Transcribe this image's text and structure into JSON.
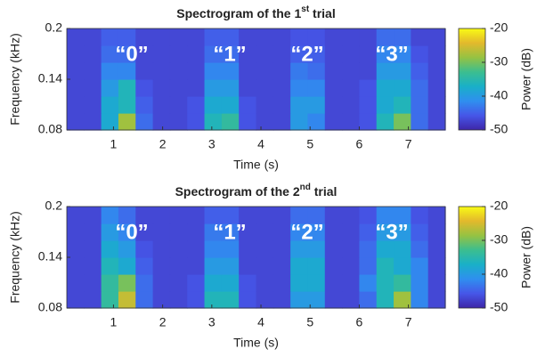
{
  "chart_data": [
    {
      "type": "heatmap",
      "title": {
        "text": "Spectrogram of the 1",
        "superscript": "st",
        "suffix": " trial"
      },
      "xlabel": "Time (s)",
      "ylabel": "Frequency (kHz)",
      "xlim": [
        0.05,
        7.75
      ],
      "ylim": [
        0.08,
        0.2
      ],
      "xticks": [
        1,
        2,
        3,
        4,
        5,
        6,
        7
      ],
      "yticks": [
        0.08,
        0.14,
        0.2
      ],
      "xbins": [
        0.05,
        0.4,
        0.75,
        1.1,
        1.45,
        1.8,
        2.15,
        2.5,
        2.85,
        3.2,
        3.55,
        3.9,
        4.25,
        4.6,
        4.95,
        5.3,
        5.65,
        6,
        6.35,
        6.7,
        7.05,
        7.4,
        7.75
      ],
      "ybins": [
        0.08,
        0.1,
        0.12,
        0.14,
        0.16,
        0.18,
        0.2
      ],
      "values": [
        [
          -47,
          -47,
          -38,
          -28,
          -44,
          -47,
          -47,
          -46,
          -36,
          -34,
          -46,
          -47,
          -47,
          -40,
          -42,
          -47,
          -47,
          -46,
          -36,
          -30,
          -44,
          -47
        ],
        [
          -47,
          -47,
          -38,
          -36,
          -45,
          -47,
          -47,
          -46,
          -38,
          -38,
          -46,
          -47,
          -47,
          -40,
          -40,
          -47,
          -47,
          -46,
          -38,
          -36,
          -44,
          -47
        ],
        [
          -47,
          -47,
          -40,
          -36,
          -46,
          -47,
          -47,
          -47,
          -40,
          -40,
          -47,
          -47,
          -47,
          -42,
          -42,
          -47,
          -47,
          -46,
          -38,
          -38,
          -44,
          -47
        ],
        [
          -47,
          -47,
          -42,
          -42,
          -47,
          -47,
          -47,
          -47,
          -42,
          -42,
          -47,
          -47,
          -47,
          -43,
          -44,
          -47,
          -47,
          -47,
          -40,
          -40,
          -45,
          -47
        ],
        [
          -47,
          -47,
          -44,
          -44,
          -47,
          -47,
          -47,
          -47,
          -44,
          -44,
          -47,
          -47,
          -47,
          -45,
          -45,
          -47,
          -47,
          -47,
          -42,
          -42,
          -46,
          -47
        ],
        [
          -47,
          -47,
          -45,
          -45,
          -47,
          -47,
          -47,
          -47,
          -45,
          -45,
          -47,
          -47,
          -47,
          -46,
          -46,
          -47,
          -47,
          -47,
          -44,
          -44,
          -47,
          -47
        ]
      ],
      "colormap": [
        "#3e26a8",
        "#4656e8",
        "#2f8fef",
        "#19b0c8",
        "#3cbe8f",
        "#96c242",
        "#e3b92c",
        "#f9fb15"
      ],
      "colorbar": {
        "label": "Power (dB)",
        "clim": [
          -50,
          -20
        ],
        "ticks": [
          -20,
          -30,
          -40,
          -50
        ]
      },
      "annotations": [
        "“0”",
        "“1”",
        "“2”",
        "“3”"
      ]
    },
    {
      "type": "heatmap",
      "title": {
        "text": "Spectrogram of the 2",
        "superscript": "nd",
        "suffix": " trial"
      },
      "xlabel": "Time (s)",
      "ylabel": "Frequency (kHz)",
      "xlim": [
        0.05,
        7.75
      ],
      "ylim": [
        0.08,
        0.2
      ],
      "xticks": [
        1,
        2,
        3,
        4,
        5,
        6,
        7
      ],
      "yticks": [
        0.08,
        0.14,
        0.2
      ],
      "xbins": [
        0.05,
        0.4,
        0.75,
        1.1,
        1.45,
        1.8,
        2.15,
        2.5,
        2.85,
        3.2,
        3.55,
        3.9,
        4.25,
        4.6,
        4.95,
        5.3,
        5.65,
        6,
        6.35,
        6.7,
        7.05,
        7.4,
        7.75
      ],
      "ybins": [
        0.08,
        0.1,
        0.12,
        0.14,
        0.16,
        0.18,
        0.2
      ],
      "values": [
        [
          -47,
          -47,
          -34,
          -26,
          -44,
          -47,
          -47,
          -46,
          -36,
          -36,
          -46,
          -47,
          -47,
          -40,
          -40,
          -47,
          -47,
          -44,
          -36,
          -28,
          -42,
          -47
        ],
        [
          -47,
          -47,
          -34,
          -30,
          -44,
          -47,
          -47,
          -46,
          -38,
          -38,
          -46,
          -47,
          -47,
          -38,
          -38,
          -47,
          -47,
          -42,
          -36,
          -34,
          -42,
          -47
        ],
        [
          -47,
          -47,
          -36,
          -38,
          -45,
          -47,
          -47,
          -47,
          -40,
          -40,
          -47,
          -47,
          -47,
          -38,
          -38,
          -47,
          -47,
          -44,
          -36,
          -38,
          -42,
          -47
        ],
        [
          -47,
          -47,
          -38,
          -40,
          -46,
          -47,
          -47,
          -47,
          -42,
          -42,
          -47,
          -47,
          -47,
          -40,
          -40,
          -47,
          -47,
          -44,
          -38,
          -38,
          -44,
          -47
        ],
        [
          -47,
          -47,
          -40,
          -42,
          -47,
          -47,
          -47,
          -47,
          -43,
          -43,
          -47,
          -47,
          -47,
          -42,
          -42,
          -47,
          -47,
          -45,
          -40,
          -40,
          -45,
          -47
        ],
        [
          -47,
          -47,
          -42,
          -44,
          -47,
          -47,
          -47,
          -47,
          -45,
          -45,
          -47,
          -47,
          -47,
          -44,
          -44,
          -47,
          -47,
          -46,
          -42,
          -42,
          -46,
          -47
        ]
      ],
      "colormap": [
        "#3e26a8",
        "#4656e8",
        "#2f8fef",
        "#19b0c8",
        "#3cbe8f",
        "#96c242",
        "#e3b92c",
        "#f9fb15"
      ],
      "colorbar": {
        "label": "Power (dB)",
        "clim": [
          -50,
          -20
        ],
        "ticks": [
          -20,
          -30,
          -40,
          -50
        ]
      },
      "annotations": [
        "“0”",
        "“1”",
        "“2”",
        "“3”"
      ]
    }
  ]
}
